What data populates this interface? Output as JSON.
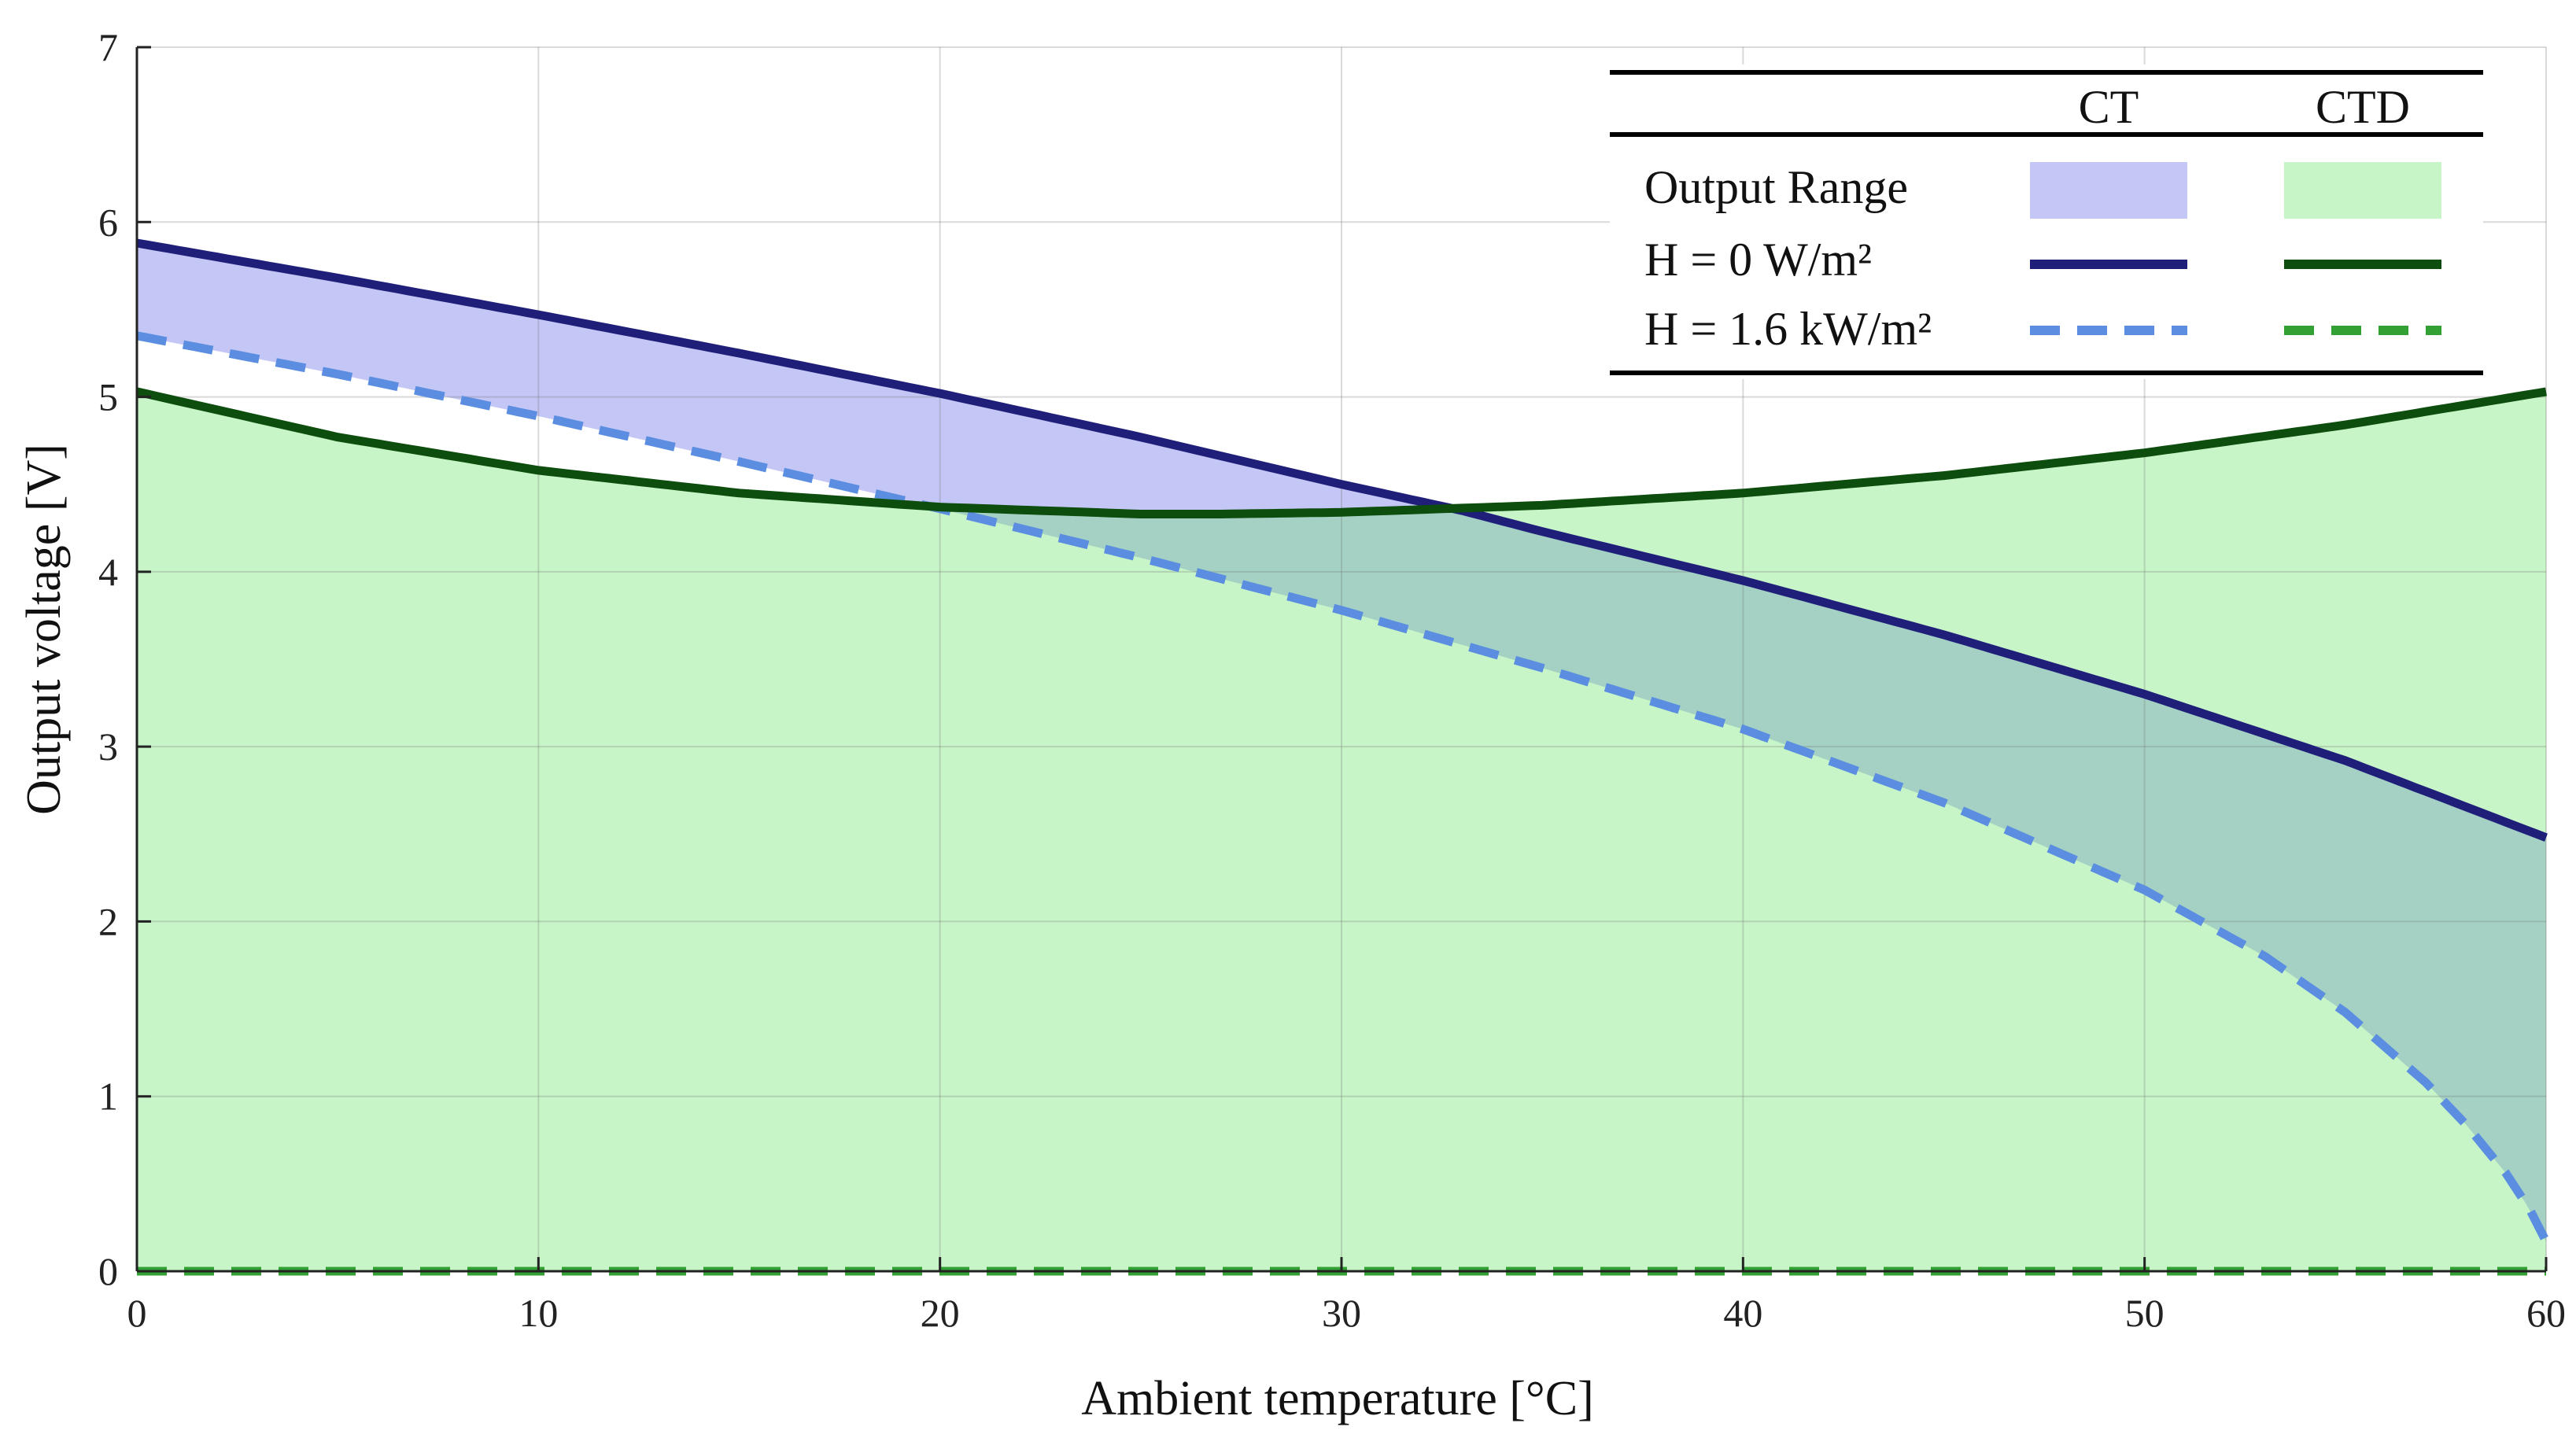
{
  "chart_data": {
    "type": "line",
    "title": "",
    "xlabel": "Ambient temperature [°C]",
    "ylabel": "Output voltage [V]",
    "xlim": [
      0,
      60
    ],
    "ylim": [
      0,
      7
    ],
    "xticks": [
      0,
      10,
      20,
      30,
      40,
      50,
      60
    ],
    "yticks": [
      0,
      1,
      2,
      3,
      4,
      5,
      6,
      7
    ],
    "grid": true,
    "series": [
      {
        "name": "CT, H = 0 W/m²",
        "group": "CT",
        "style": "solid",
        "color": "#1f1f7a",
        "x": [
          0,
          5,
          10,
          15,
          20,
          25,
          30,
          33,
          35,
          40,
          45,
          50,
          55,
          60
        ],
        "y": [
          5.88,
          5.68,
          5.47,
          5.25,
          5.02,
          4.77,
          4.5,
          4.35,
          4.23,
          3.95,
          3.64,
          3.3,
          2.92,
          2.48
        ]
      },
      {
        "name": "CT, H = 1.6 kW/m²",
        "group": "CT",
        "style": "dashed",
        "color": "#5b8ee0",
        "x": [
          0,
          5,
          10,
          15,
          20,
          25,
          30,
          35,
          40,
          45,
          50,
          53,
          55,
          57,
          58,
          59,
          59.6,
          60
        ],
        "y": [
          5.35,
          5.13,
          4.89,
          4.63,
          4.36,
          4.08,
          3.78,
          3.45,
          3.1,
          2.68,
          2.18,
          1.8,
          1.48,
          1.08,
          0.84,
          0.56,
          0.35,
          0.17
        ]
      },
      {
        "name": "CTD, H = 0 W/m²",
        "group": "CTD",
        "style": "solid",
        "color": "#0d4d0d",
        "x": [
          0,
          5,
          10,
          15,
          20,
          25,
          27,
          30,
          35,
          40,
          45,
          50,
          55,
          60
        ],
        "y": [
          5.03,
          4.77,
          4.58,
          4.45,
          4.37,
          4.33,
          4.33,
          4.34,
          4.38,
          4.45,
          4.55,
          4.68,
          4.84,
          5.03
        ]
      },
      {
        "name": "CTD, H = 1.6 kW/m²",
        "group": "CTD",
        "style": "dashed",
        "color": "#33a033",
        "x": [
          0,
          60
        ],
        "y": [
          0.0,
          0.0
        ]
      }
    ],
    "ranges": [
      {
        "name": "CT Output Range",
        "fill": "#c4c6f5",
        "upper": "CT, H = 0 W/m²",
        "lower": "CT, H = 1.6 kW/m²"
      },
      {
        "name": "CTD Output Range",
        "fill": "#c8f5c8",
        "upper": "CTD, H = 0 W/m²",
        "lower": "CTD, H = 1.6 kW/m²"
      }
    ],
    "overlap_fill": "#a4d1c4",
    "legend": {
      "placement": "top-right",
      "columns": [
        "CT",
        "CTD"
      ],
      "rows": [
        "Output Range",
        "H = 0 W/m²",
        "H = 1.6 kW/m²"
      ]
    }
  }
}
